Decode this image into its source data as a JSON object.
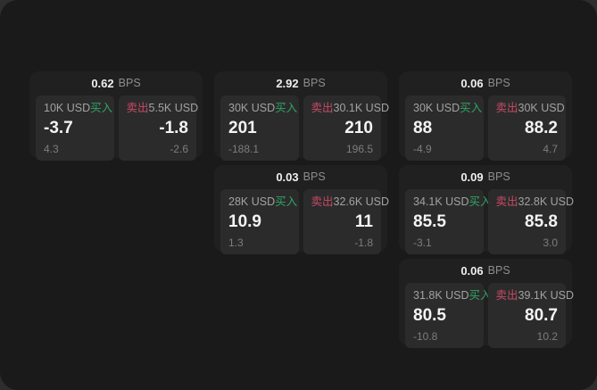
{
  "colors": {
    "desktop_bg": "#2e2e2e",
    "panel_bg": "#1a1a1b",
    "card_bg": "#202021",
    "tile_bg": "#2b2b2c",
    "text_primary": "#f4f4f4",
    "text_muted": "#a2a2a2",
    "text_dim": "#7d7d7d",
    "buy_green": "#2fa465",
    "sell_red": "#c34a62"
  },
  "labels": {
    "bps_suffix": "BPS",
    "buy": "买入",
    "sell": "卖出"
  },
  "cards": [
    {
      "col": 1,
      "row": 1,
      "bps": "0.62",
      "buy": {
        "amount": "10K USD",
        "value": "-3.7",
        "sub": "4.3"
      },
      "sell": {
        "amount": "5.5K USD",
        "value": "-1.8",
        "sub": "-2.6"
      }
    },
    {
      "col": 2,
      "row": 1,
      "bps": "2.92",
      "buy": {
        "amount": "30K USD",
        "value": "201",
        "sub": "-188.1"
      },
      "sell": {
        "amount": "30.1K USD",
        "value": "210",
        "sub": "196.5"
      }
    },
    {
      "col": 3,
      "row": 1,
      "bps": "0.06",
      "buy": {
        "amount": "30K USD",
        "value": "88",
        "sub": "-4.9"
      },
      "sell": {
        "amount": "30K USD",
        "value": "88.2",
        "sub": "4.7"
      }
    },
    {
      "col": 2,
      "row": 2,
      "bps": "0.03",
      "buy": {
        "amount": "28K USD",
        "value": "10.9",
        "sub": "1.3"
      },
      "sell": {
        "amount": "32.6K USD",
        "value": "11",
        "sub": "-1.8"
      }
    },
    {
      "col": 3,
      "row": 2,
      "bps": "0.09",
      "buy": {
        "amount": "34.1K USD",
        "value": "85.5",
        "sub": "-3.1"
      },
      "sell": {
        "amount": "32.8K USD",
        "value": "85.8",
        "sub": "3.0"
      }
    },
    {
      "col": 3,
      "row": 3,
      "bps": "0.06",
      "buy": {
        "amount": "31.8K USD",
        "value": "80.5",
        "sub": "-10.8"
      },
      "sell": {
        "amount": "39.1K USD",
        "value": "80.7",
        "sub": "10.2"
      }
    }
  ]
}
